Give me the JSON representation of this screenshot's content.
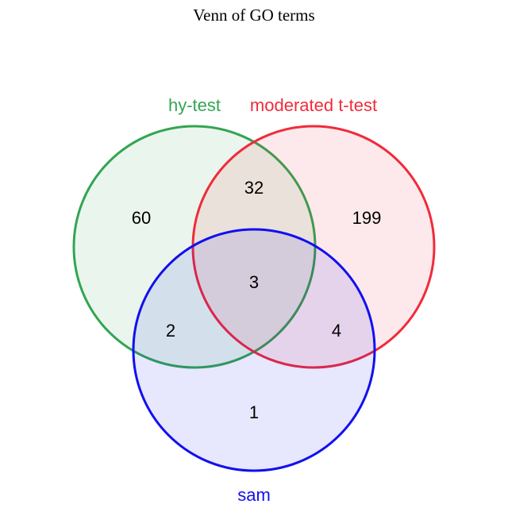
{
  "title": "Venn of GO terms",
  "sets": [
    {
      "id": "A",
      "name": "hy-test",
      "color": "#33a552"
    },
    {
      "id": "B",
      "name": "moderated t-test",
      "color": "#f02b3b"
    },
    {
      "id": "C",
      "name": "sam",
      "color": "#1010f0"
    }
  ],
  "regions": {
    "A_only": "60",
    "B_only": "199",
    "AB_only": "32",
    "ABC": "3",
    "AC_only": "2",
    "BC_only": "4",
    "C_only": "1"
  }
}
